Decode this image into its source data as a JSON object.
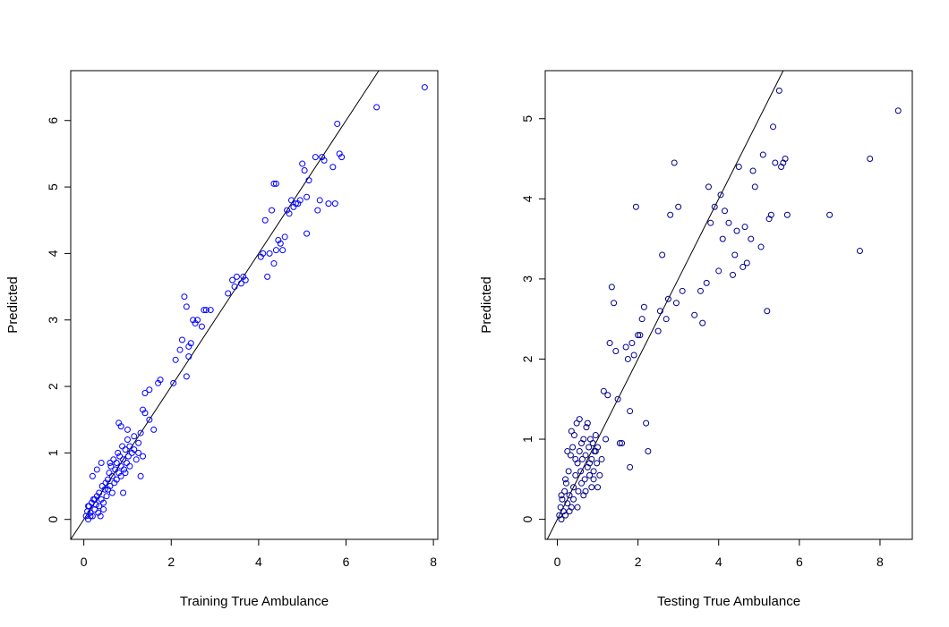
{
  "chart_data": [
    {
      "type": "scatter",
      "xlabel": "Training True Ambulance",
      "ylabel": "Predicted",
      "xticks": [
        "0",
        "2",
        "4",
        "6",
        "8"
      ],
      "yticks": [
        "0",
        "1",
        "2",
        "3",
        "4",
        "5",
        "6"
      ],
      "xlim": [
        -0.3,
        8.1
      ],
      "ylim": [
        -0.3,
        6.75
      ],
      "reference_line": "y = x",
      "point_color": "#0000ff",
      "series": [
        {
          "points": [
            [
              0.05,
              0.05
            ],
            [
              0.08,
              0.12
            ],
            [
              0.1,
              0.0
            ],
            [
              0.12,
              0.2
            ],
            [
              0.15,
              0.1
            ],
            [
              0.18,
              0.25
            ],
            [
              0.2,
              0.05
            ],
            [
              0.22,
              0.3
            ],
            [
              0.25,
              0.15
            ],
            [
              0.28,
              0.22
            ],
            [
              0.3,
              0.35
            ],
            [
              0.33,
              0.1
            ],
            [
              0.35,
              0.4
            ],
            [
              0.38,
              0.05
            ],
            [
              0.4,
              0.3
            ],
            [
              0.42,
              0.5
            ],
            [
              0.45,
              0.25
            ],
            [
              0.48,
              0.45
            ],
            [
              0.5,
              0.55
            ],
            [
              0.52,
              0.35
            ],
            [
              0.55,
              0.6
            ],
            [
              0.58,
              0.7
            ],
            [
              0.6,
              0.5
            ],
            [
              0.62,
              0.8
            ],
            [
              0.65,
              0.65
            ],
            [
              0.68,
              0.9
            ],
            [
              0.7,
              0.55
            ],
            [
              0.72,
              0.75
            ],
            [
              0.75,
              0.85
            ],
            [
              0.78,
              1.0
            ],
            [
              0.8,
              0.7
            ],
            [
              0.82,
              0.95
            ],
            [
              0.85,
              0.8
            ],
            [
              0.88,
              1.1
            ],
            [
              0.9,
              0.9
            ],
            [
              0.92,
              0.75
            ],
            [
              0.95,
              1.05
            ],
            [
              0.98,
              0.85
            ],
            [
              1.0,
              1.2
            ],
            [
              1.02,
              0.95
            ],
            [
              1.05,
              1.1
            ],
            [
              1.1,
              1.0
            ],
            [
              1.15,
              1.25
            ],
            [
              1.2,
              0.9
            ],
            [
              1.25,
              1.15
            ],
            [
              1.3,
              1.3
            ],
            [
              1.35,
              0.95
            ],
            [
              1.4,
              1.6
            ],
            [
              0.8,
              1.45
            ],
            [
              0.85,
              1.4
            ],
            [
              0.2,
              0.65
            ],
            [
              0.4,
              0.85
            ],
            [
              0.3,
              0.75
            ],
            [
              0.9,
              0.4
            ],
            [
              1.3,
              0.65
            ],
            [
              1.5,
              1.5
            ],
            [
              1.6,
              1.35
            ],
            [
              1.7,
              2.05
            ],
            [
              1.75,
              2.1
            ],
            [
              1.4,
              1.9
            ],
            [
              1.5,
              1.95
            ],
            [
              1.35,
              1.65
            ],
            [
              2.05,
              2.05
            ],
            [
              2.1,
              2.4
            ],
            [
              2.2,
              2.55
            ],
            [
              2.25,
              2.7
            ],
            [
              2.3,
              3.35
            ],
            [
              2.35,
              3.2
            ],
            [
              2.4,
              2.6
            ],
            [
              2.45,
              2.65
            ],
            [
              2.5,
              3.0
            ],
            [
              2.55,
              2.95
            ],
            [
              2.6,
              3.0
            ],
            [
              2.7,
              2.9
            ],
            [
              2.75,
              3.15
            ],
            [
              2.8,
              3.15
            ],
            [
              2.4,
              2.45
            ],
            [
              2.35,
              2.15
            ],
            [
              2.9,
              3.15
            ],
            [
              3.3,
              3.4
            ],
            [
              3.4,
              3.6
            ],
            [
              3.5,
              3.65
            ],
            [
              3.6,
              3.55
            ],
            [
              3.7,
              3.6
            ],
            [
              3.45,
              3.5
            ],
            [
              3.65,
              3.65
            ],
            [
              4.05,
              3.95
            ],
            [
              4.1,
              4.0
            ],
            [
              4.15,
              4.5
            ],
            [
              4.2,
              3.65
            ],
            [
              4.25,
              4.0
            ],
            [
              4.3,
              4.65
            ],
            [
              4.35,
              3.85
            ],
            [
              4.4,
              4.05
            ],
            [
              4.45,
              4.2
            ],
            [
              4.5,
              4.15
            ],
            [
              4.55,
              4.05
            ],
            [
              4.6,
              4.25
            ],
            [
              4.65,
              4.65
            ],
            [
              4.7,
              4.6
            ],
            [
              4.75,
              4.8
            ],
            [
              4.8,
              4.7
            ],
            [
              4.85,
              4.75
            ],
            [
              4.9,
              4.75
            ],
            [
              4.95,
              4.8
            ],
            [
              5.0,
              5.35
            ],
            [
              5.05,
              5.25
            ],
            [
              5.1,
              4.85
            ],
            [
              5.15,
              5.1
            ],
            [
              5.1,
              4.3
            ],
            [
              4.35,
              5.05
            ],
            [
              4.4,
              5.05
            ],
            [
              5.3,
              5.45
            ],
            [
              5.35,
              4.65
            ],
            [
              5.4,
              4.8
            ],
            [
              5.5,
              5.4
            ],
            [
              5.6,
              4.75
            ],
            [
              5.7,
              5.3
            ],
            [
              5.75,
              4.75
            ],
            [
              5.8,
              5.95
            ],
            [
              5.85,
              5.5
            ],
            [
              5.9,
              5.45
            ],
            [
              5.45,
              5.45
            ],
            [
              6.7,
              6.2
            ],
            [
              7.8,
              6.5
            ],
            [
              0.1,
              0.2
            ],
            [
              0.15,
              0.05
            ],
            [
              0.25,
              0.3
            ],
            [
              0.35,
              0.2
            ],
            [
              0.45,
              0.15
            ],
            [
              0.55,
              0.45
            ],
            [
              0.65,
              0.4
            ],
            [
              0.75,
              0.6
            ],
            [
              0.85,
              0.65
            ],
            [
              0.95,
              0.7
            ],
            [
              1.05,
              0.8
            ],
            [
              1.15,
              1.05
            ],
            [
              1.25,
              1.0
            ],
            [
              1.0,
              1.35
            ],
            [
              0.6,
              0.85
            ]
          ]
        }
      ]
    },
    {
      "type": "scatter",
      "xlabel": "Testing True Ambulance",
      "ylabel": "Predicted",
      "xticks": [
        "0",
        "2",
        "4",
        "6",
        "8"
      ],
      "yticks": [
        "0",
        "1",
        "2",
        "3",
        "4",
        "5"
      ],
      "xlim": [
        -0.3,
        8.8
      ],
      "ylim": [
        -0.25,
        5.6
      ],
      "reference_line": "y = x",
      "point_color": "#00008b",
      "series": [
        {
          "points": [
            [
              0.05,
              0.05
            ],
            [
              0.08,
              0.15
            ],
            [
              0.1,
              0.0
            ],
            [
              0.12,
              0.25
            ],
            [
              0.15,
              0.1
            ],
            [
              0.18,
              0.35
            ],
            [
              0.2,
              0.05
            ],
            [
              0.22,
              0.45
            ],
            [
              0.25,
              0.2
            ],
            [
              0.28,
              0.6
            ],
            [
              0.3,
              0.3
            ],
            [
              0.33,
              0.8
            ],
            [
              0.35,
              0.15
            ],
            [
              0.38,
              0.9
            ],
            [
              0.4,
              0.4
            ],
            [
              0.42,
              1.05
            ],
            [
              0.45,
              0.55
            ],
            [
              0.48,
              1.2
            ],
            [
              0.5,
              0.7
            ],
            [
              0.52,
              0.35
            ],
            [
              0.55,
              0.85
            ],
            [
              0.58,
              0.6
            ],
            [
              0.6,
              0.95
            ],
            [
              0.62,
              0.75
            ],
            [
              0.65,
              1.0
            ],
            [
              0.68,
              0.5
            ],
            [
              0.7,
              0.8
            ],
            [
              0.72,
              1.15
            ],
            [
              0.75,
              0.65
            ],
            [
              0.78,
              0.9
            ],
            [
              0.8,
              0.55
            ],
            [
              0.82,
              1.0
            ],
            [
              0.85,
              0.75
            ],
            [
              0.88,
              0.95
            ],
            [
              0.9,
              0.6
            ],
            [
              0.92,
              0.85
            ],
            [
              0.95,
              1.05
            ],
            [
              0.98,
              0.7
            ],
            [
              1.0,
              0.9
            ],
            [
              1.05,
              0.55
            ],
            [
              1.1,
              0.75
            ],
            [
              1.15,
              1.6
            ],
            [
              1.2,
              1.0
            ],
            [
              1.25,
              1.55
            ],
            [
              1.3,
              2.2
            ],
            [
              1.35,
              2.9
            ],
            [
              1.4,
              2.7
            ],
            [
              1.45,
              2.1
            ],
            [
              1.5,
              1.5
            ],
            [
              1.55,
              0.95
            ],
            [
              1.6,
              0.95
            ],
            [
              1.7,
              2.15
            ],
            [
              1.75,
              2.0
            ],
            [
              1.8,
              1.35
            ],
            [
              1.8,
              0.65
            ],
            [
              1.85,
              2.2
            ],
            [
              1.9,
              2.05
            ],
            [
              1.95,
              3.9
            ],
            [
              2.0,
              2.3
            ],
            [
              2.05,
              2.3
            ],
            [
              2.1,
              2.5
            ],
            [
              2.15,
              2.65
            ],
            [
              2.2,
              1.2
            ],
            [
              2.25,
              0.85
            ],
            [
              2.5,
              2.35
            ],
            [
              2.55,
              2.6
            ],
            [
              2.6,
              3.3
            ],
            [
              2.7,
              2.5
            ],
            [
              2.75,
              2.75
            ],
            [
              2.8,
              3.8
            ],
            [
              2.9,
              4.45
            ],
            [
              2.95,
              2.7
            ],
            [
              3.0,
              3.9
            ],
            [
              3.1,
              2.85
            ],
            [
              3.4,
              2.55
            ],
            [
              3.55,
              2.85
            ],
            [
              3.6,
              2.45
            ],
            [
              3.7,
              2.95
            ],
            [
              3.75,
              4.15
            ],
            [
              3.8,
              3.7
            ],
            [
              3.9,
              3.9
            ],
            [
              4.0,
              3.1
            ],
            [
              4.05,
              4.05
            ],
            [
              4.1,
              3.5
            ],
            [
              4.15,
              3.85
            ],
            [
              4.25,
              3.7
            ],
            [
              4.35,
              3.05
            ],
            [
              4.4,
              3.3
            ],
            [
              4.45,
              3.6
            ],
            [
              4.5,
              4.4
            ],
            [
              4.6,
              3.15
            ],
            [
              4.65,
              3.65
            ],
            [
              4.7,
              3.2
            ],
            [
              4.8,
              3.5
            ],
            [
              4.85,
              4.35
            ],
            [
              4.9,
              4.15
            ],
            [
              5.05,
              3.4
            ],
            [
              5.1,
              4.55
            ],
            [
              5.2,
              2.6
            ],
            [
              5.25,
              3.75
            ],
            [
              5.3,
              3.8
            ],
            [
              5.35,
              4.9
            ],
            [
              5.4,
              4.45
            ],
            [
              5.5,
              5.35
            ],
            [
              5.55,
              4.4
            ],
            [
              5.6,
              4.45
            ],
            [
              5.65,
              4.5
            ],
            [
              5.7,
              3.8
            ],
            [
              6.75,
              3.8
            ],
            [
              7.5,
              3.35
            ],
            [
              7.75,
              4.5
            ],
            [
              8.45,
              5.1
            ],
            [
              0.1,
              0.3
            ],
            [
              0.2,
              0.5
            ],
            [
              0.3,
              0.1
            ],
            [
              0.4,
              0.25
            ],
            [
              0.5,
              0.15
            ],
            [
              0.6,
              0.45
            ],
            [
              0.7,
              0.35
            ],
            [
              0.8,
              0.7
            ],
            [
              0.9,
              0.5
            ],
            [
              1.0,
              0.4
            ],
            [
              0.25,
              0.85
            ],
            [
              0.35,
              1.1
            ],
            [
              0.45,
              0.75
            ],
            [
              0.55,
              1.25
            ],
            [
              0.65,
              0.3
            ],
            [
              0.75,
              1.2
            ],
            [
              0.85,
              0.4
            ],
            [
              0.95,
              0.85
            ]
          ]
        }
      ]
    }
  ]
}
